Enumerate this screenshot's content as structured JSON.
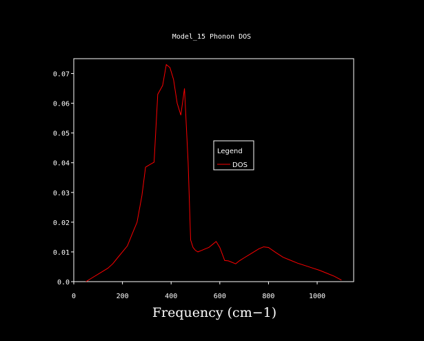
{
  "chart_data": {
    "type": "line",
    "title": "Model_15 Phonon DOS",
    "xlabel": "Frequency (cm−1)",
    "ylabel": "",
    "xlim": [
      0,
      1150
    ],
    "ylim": [
      0,
      0.075
    ],
    "xticks": [
      0,
      200,
      400,
      600,
      800,
      1000
    ],
    "yticks": [
      0.0,
      0.01,
      0.02,
      0.03,
      0.04,
      0.05,
      0.06,
      0.07
    ],
    "xtick_labels": [
      "0",
      "200",
      "400",
      "600",
      "800",
      "1000"
    ],
    "ytick_labels": [
      "0.0",
      "0.01",
      "0.02",
      "0.03",
      "0.04",
      "0.05",
      "0.06",
      "0.07"
    ],
    "grid": false,
    "background": "#000000",
    "axis_color": "#ffffff",
    "legend": {
      "title": "Legend",
      "position": "center-right"
    },
    "series": [
      {
        "name": "DOS",
        "color": "#ff0000",
        "x": [
          50,
          80,
          110,
          140,
          160,
          180,
          200,
          220,
          240,
          260,
          280,
          295,
          315,
          330,
          345,
          365,
          380,
          395,
          410,
          425,
          440,
          455,
          470,
          480,
          490,
          500,
          510,
          525,
          540,
          555,
          570,
          585,
          600,
          620,
          635,
          650,
          665,
          680,
          700,
          730,
          760,
          780,
          800,
          830,
          860,
          890,
          920,
          950,
          980,
          1010,
          1040,
          1070,
          1100
        ],
        "y": [
          0.0,
          0.0015,
          0.003,
          0.0045,
          0.006,
          0.008,
          0.01,
          0.012,
          0.016,
          0.02,
          0.029,
          0.0385,
          0.0395,
          0.0402,
          0.063,
          0.066,
          0.073,
          0.072,
          0.068,
          0.06,
          0.056,
          0.065,
          0.04,
          0.014,
          0.0115,
          0.0105,
          0.01,
          0.0105,
          0.011,
          0.0115,
          0.0125,
          0.0135,
          0.0115,
          0.0071,
          0.007,
          0.0065,
          0.006,
          0.007,
          0.008,
          0.0095,
          0.011,
          0.0117,
          0.0115,
          0.0098,
          0.0082,
          0.0072,
          0.0062,
          0.0054,
          0.0046,
          0.0038,
          0.0028,
          0.0018,
          0.0005
        ]
      }
    ]
  }
}
